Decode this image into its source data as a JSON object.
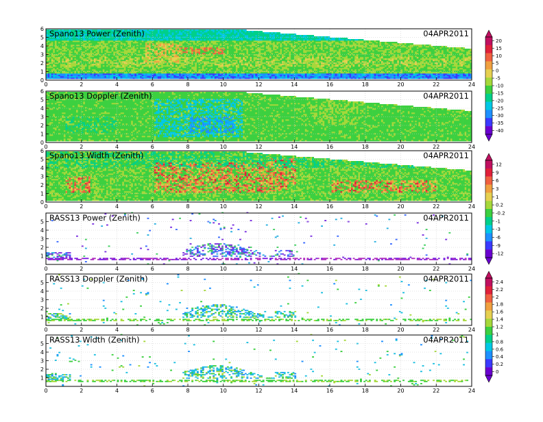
{
  "chart_data": {
    "type": "heatmap",
    "date": "04APR2011",
    "x": {
      "lim": [
        0,
        24
      ],
      "ticks": [
        0,
        2,
        4,
        6,
        8,
        10,
        12,
        14,
        16,
        18,
        20,
        22,
        24
      ]
    },
    "panels": [
      {
        "title": "Spano13 Power (Zenith)",
        "y_lim": [
          0,
          6
        ],
        "y_ticks": [
          0,
          1,
          2,
          3,
          4,
          5,
          6
        ],
        "scale": "power",
        "mode": "full"
      },
      {
        "title": "Spano13 Doppler (Zenith)",
        "y_lim": [
          0,
          6
        ],
        "y_ticks": [
          0,
          1,
          2,
          3,
          4,
          5,
          6
        ],
        "scale": "doppler",
        "mode": "full"
      },
      {
        "title": "Spano13 Width (Zenith)",
        "y_lim": [
          0,
          6
        ],
        "y_ticks": [
          0,
          1,
          2,
          3,
          4,
          5,
          6
        ],
        "scale": "width",
        "mode": "full"
      },
      {
        "title": "RASS13 Power (Zenith)",
        "y_lim": [
          0,
          6
        ],
        "y_ticks": [
          1,
          2,
          3,
          4,
          5
        ],
        "scale": "rass_power",
        "mode": "sparse"
      },
      {
        "title": "RASS13 Doppler (Zenith)",
        "y_lim": [
          0,
          6
        ],
        "y_ticks": [
          1,
          2,
          3,
          4,
          5
        ],
        "scale": "rass_doppler",
        "mode": "sparse"
      },
      {
        "title": "RASS13 Width (Zenith)",
        "y_lim": [
          0,
          6
        ],
        "y_ticks": [
          1,
          2,
          3,
          4,
          5
        ],
        "scale": "rass_doppler",
        "mode": "sparse"
      }
    ],
    "colorbars": [
      {
        "labels": [
          "20",
          "15",
          "10",
          "5",
          "0",
          "-5",
          "-10",
          "-15",
          "-20",
          "-25",
          "-30",
          "-35",
          "-40"
        ]
      },
      {
        "labels": [
          "12",
          "9",
          "6",
          "3",
          "1",
          "0.2",
          "-0.2",
          "-1",
          "-3",
          "-6",
          "-9",
          "-12"
        ]
      },
      {
        "labels": [
          "2.4",
          "2.2",
          "2",
          "1.8",
          "1.6",
          "1.4",
          "1.2",
          "1",
          "0.8",
          "0.6",
          "0.4",
          "0.2",
          "0"
        ]
      }
    ],
    "palette": [
      "#6a00d0",
      "#3a3aff",
      "#1e90ff",
      "#00c8e6",
      "#00d08a",
      "#3cd040",
      "#a6d83a",
      "#e6d050",
      "#f0a040",
      "#f06040",
      "#e0203a",
      "#c01060"
    ],
    "grid": "dotted"
  }
}
